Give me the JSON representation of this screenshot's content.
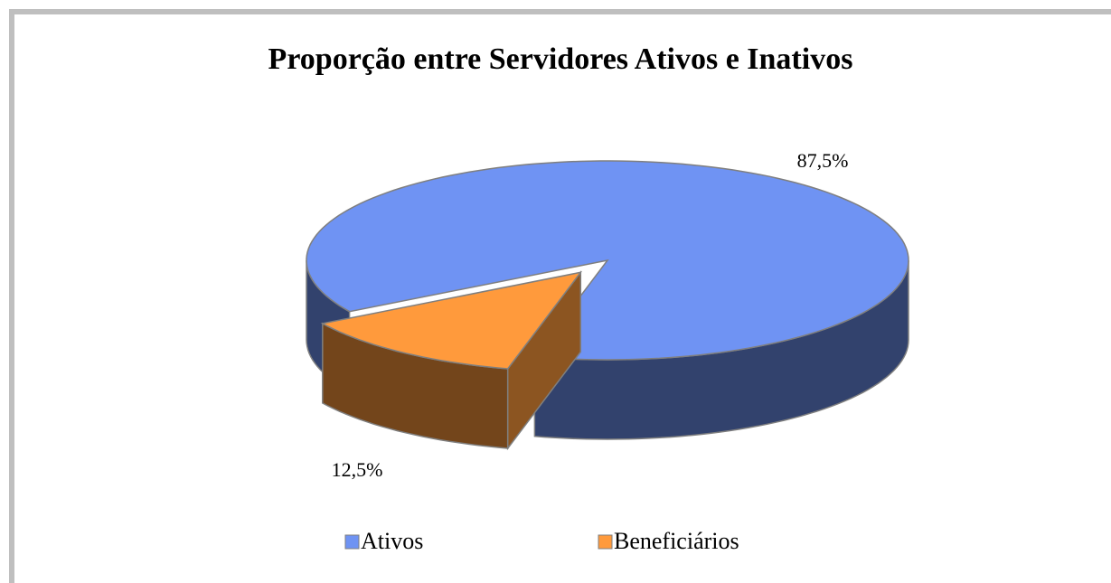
{
  "chart_data": {
    "type": "pie3d",
    "title": "Proporção entre Servidores Ativos e Inativos",
    "categories": [
      "Ativos",
      "Beneficiários"
    ],
    "values": [
      87.5,
      12.5
    ],
    "value_labels": [
      "87,5%",
      "12,5%"
    ],
    "colors": [
      "#6f93f3",
      "#ff9a3c"
    ],
    "legend": "bottom"
  }
}
